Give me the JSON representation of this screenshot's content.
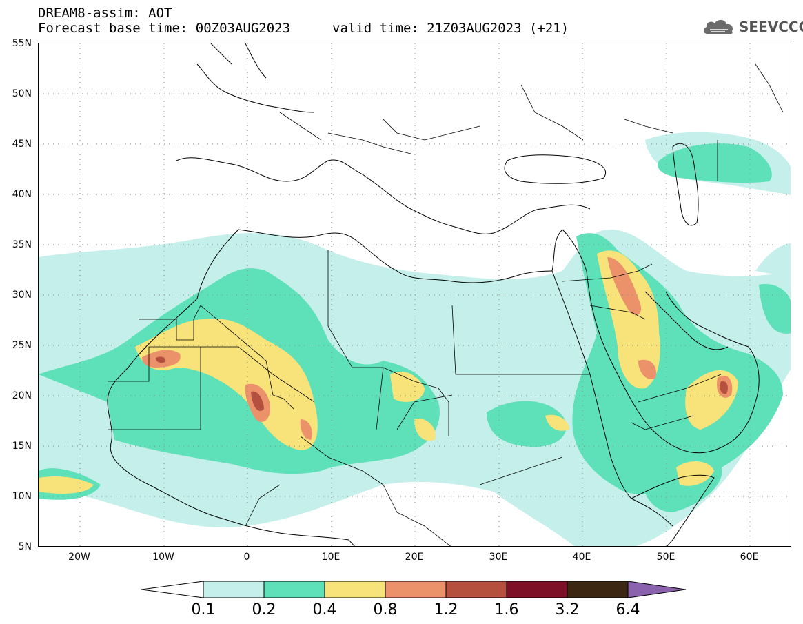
{
  "header": {
    "title": "DREAM8-assim: AOT",
    "base_time": "Forecast base time: 00Z03AUG2023",
    "valid_time": "valid time: 21Z03AUG2023 (+21)"
  },
  "logo": {
    "text": "SEEVCCC",
    "icon": "cloud-logo-icon"
  },
  "map": {
    "lat_labels": [
      "55N",
      "50N",
      "45N",
      "40N",
      "35N",
      "30N",
      "25N",
      "20N",
      "15N",
      "10N",
      "5N"
    ],
    "lon_labels": [
      "20W",
      "10W",
      "0",
      "10E",
      "20E",
      "30E",
      "40E",
      "50E",
      "60E"
    ],
    "lat_range": [
      5,
      55
    ],
    "lon_range": [
      -25,
      65
    ]
  },
  "colorbar": {
    "labels": [
      "0.1",
      "0.2",
      "0.4",
      "0.8",
      "1.2",
      "1.6",
      "3.2",
      "6.4"
    ],
    "colors": [
      "#ffffff",
      "#c4efea",
      "#5ee0b8",
      "#f7e37a",
      "#ec926b",
      "#b5503f",
      "#7d0f26",
      "#3b2712",
      "#8b62ad"
    ]
  }
}
